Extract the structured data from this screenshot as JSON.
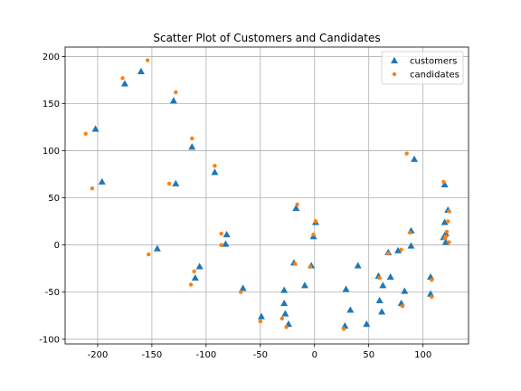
{
  "chart_data": {
    "type": "scatter",
    "title": "Scatter Plot of Customers and Candidates",
    "xlabel": "",
    "ylabel": "",
    "xlim": [
      -230,
      142
    ],
    "ylim": [
      -105,
      210
    ],
    "xticks": [
      -200,
      -150,
      -100,
      -50,
      0,
      50,
      100
    ],
    "yticks": [
      -100,
      -50,
      0,
      50,
      100,
      150,
      200
    ],
    "grid": true,
    "legend_position": "top-right",
    "series": [
      {
        "name": "customers",
        "marker": "triangle",
        "color": "#1f77b4",
        "points": [
          {
            "x": -202,
            "y": 123
          },
          {
            "x": -196,
            "y": 67
          },
          {
            "x": -175,
            "y": 171
          },
          {
            "x": -160,
            "y": 184
          },
          {
            "x": -130,
            "y": 153
          },
          {
            "x": -128,
            "y": 65
          },
          {
            "x": -113,
            "y": 104
          },
          {
            "x": -145,
            "y": -4
          },
          {
            "x": -110,
            "y": -35
          },
          {
            "x": -106,
            "y": -23
          },
          {
            "x": -92,
            "y": 77
          },
          {
            "x": -81,
            "y": 11
          },
          {
            "x": -82,
            "y": 1
          },
          {
            "x": -66,
            "y": -46
          },
          {
            "x": -49,
            "y": -76
          },
          {
            "x": -28,
            "y": -48
          },
          {
            "x": -28,
            "y": -62
          },
          {
            "x": -27,
            "y": -73
          },
          {
            "x": -24,
            "y": -84
          },
          {
            "x": -19,
            "y": -19
          },
          {
            "x": -17,
            "y": 39
          },
          {
            "x": -9,
            "y": -43
          },
          {
            "x": -3,
            "y": -22
          },
          {
            "x": -1,
            "y": 9
          },
          {
            "x": 1,
            "y": 24
          },
          {
            "x": 28,
            "y": -86
          },
          {
            "x": 29,
            "y": -47
          },
          {
            "x": 33,
            "y": -69
          },
          {
            "x": 40,
            "y": -22
          },
          {
            "x": 48,
            "y": -84
          },
          {
            "x": 59,
            "y": -33
          },
          {
            "x": 60,
            "y": -59
          },
          {
            "x": 62,
            "y": -71
          },
          {
            "x": 63,
            "y": -43
          },
          {
            "x": 68,
            "y": -8
          },
          {
            "x": 70,
            "y": -34
          },
          {
            "x": 77,
            "y": -6
          },
          {
            "x": 80,
            "y": -62
          },
          {
            "x": 83,
            "y": -49
          },
          {
            "x": 89,
            "y": 15
          },
          {
            "x": 89,
            "y": -1
          },
          {
            "x": 92,
            "y": 91
          },
          {
            "x": 107,
            "y": -34
          },
          {
            "x": 107,
            "y": -52
          },
          {
            "x": 119,
            "y": 8
          },
          {
            "x": 120,
            "y": 64
          },
          {
            "x": 120,
            "y": 24
          },
          {
            "x": 121,
            "y": 12
          },
          {
            "x": 121,
            "y": 3
          },
          {
            "x": 123,
            "y": 37
          }
        ]
      },
      {
        "name": "candidates",
        "marker": "circle",
        "color": "#ff7f0e",
        "points": [
          {
            "x": -211,
            "y": 118
          },
          {
            "x": -205,
            "y": 60
          },
          {
            "x": -177,
            "y": 177
          },
          {
            "x": -154,
            "y": 196
          },
          {
            "x": -153,
            "y": -10
          },
          {
            "x": -128,
            "y": 162
          },
          {
            "x": -134,
            "y": 65
          },
          {
            "x": -113,
            "y": 113
          },
          {
            "x": -114,
            "y": -42
          },
          {
            "x": -111,
            "y": -28
          },
          {
            "x": -92,
            "y": 84
          },
          {
            "x": -86,
            "y": 12
          },
          {
            "x": -86,
            "y": 0
          },
          {
            "x": -68,
            "y": -50
          },
          {
            "x": -50,
            "y": -81
          },
          {
            "x": -30,
            "y": -78
          },
          {
            "x": -26,
            "y": -87
          },
          {
            "x": -18,
            "y": -20
          },
          {
            "x": -16,
            "y": 43
          },
          {
            "x": -4,
            "y": -23
          },
          {
            "x": -1,
            "y": 11
          },
          {
            "x": 1,
            "y": 25
          },
          {
            "x": 27,
            "y": -89
          },
          {
            "x": 60,
            "y": -35
          },
          {
            "x": 68,
            "y": -9
          },
          {
            "x": 80,
            "y": -5
          },
          {
            "x": 81,
            "y": -65
          },
          {
            "x": 85,
            "y": 97
          },
          {
            "x": 88,
            "y": 13
          },
          {
            "x": 108,
            "y": -37
          },
          {
            "x": 108,
            "y": -55
          },
          {
            "x": 119,
            "y": 67
          },
          {
            "x": 120,
            "y": 7
          },
          {
            "x": 121,
            "y": 9
          },
          {
            "x": 122,
            "y": 14
          },
          {
            "x": 123,
            "y": 25
          },
          {
            "x": 124,
            "y": 36
          },
          {
            "x": 124,
            "y": 3
          }
        ]
      }
    ]
  }
}
